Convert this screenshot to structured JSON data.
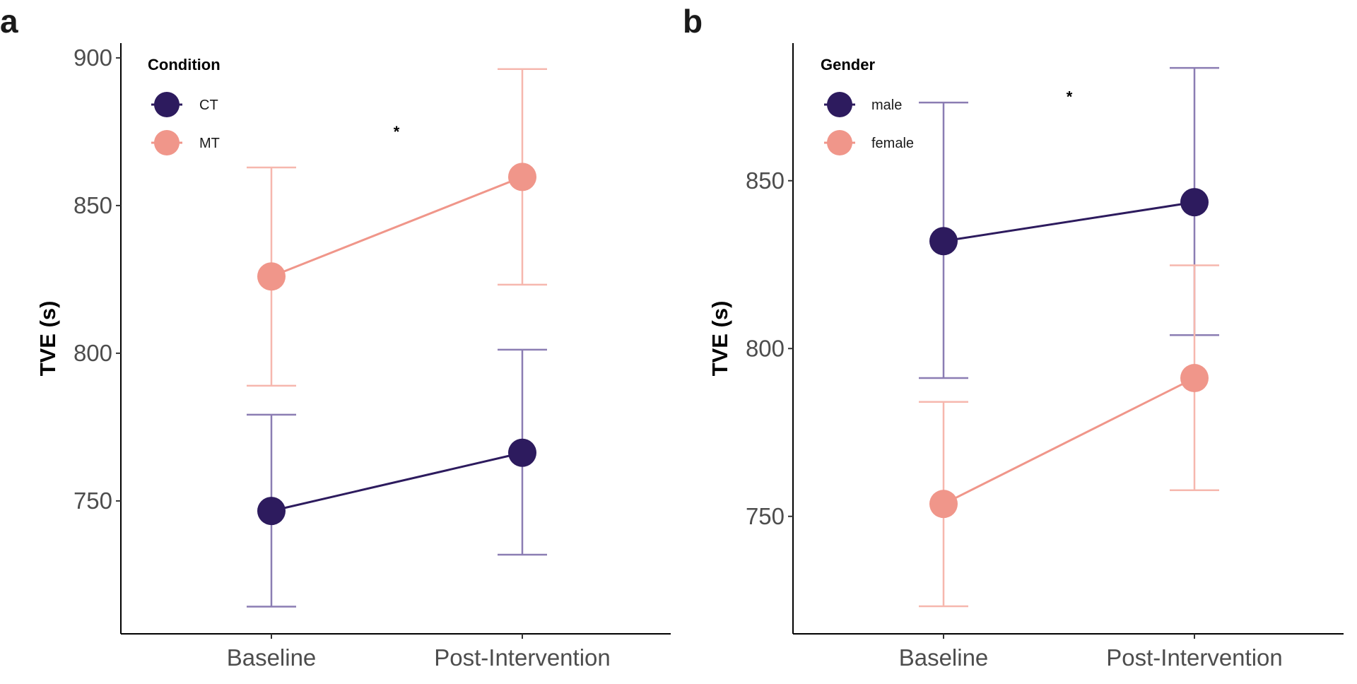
{
  "colors": {
    "dark": "#2d1b5e",
    "light": "#f0968a",
    "dark_err": "#8b7db3",
    "light_err": "#f6b7ae"
  },
  "chart_data": [
    {
      "type": "line",
      "panel_label": "a",
      "ylabel": "TVE (s)",
      "xlabel": "",
      "categories": [
        "Baseline",
        "Post-Intervention"
      ],
      "ylim": [
        705,
        905
      ],
      "yticks": [
        750,
        800,
        850,
        900
      ],
      "grid": false,
      "legend": {
        "title": "Condition",
        "position": "top-left"
      },
      "annotation": {
        "text": "*",
        "x_between": [
          0,
          1
        ],
        "y": 876
      },
      "series": [
        {
          "name": "CT",
          "color_key": "dark",
          "values": [
            746.6,
            766.3
          ],
          "error_low": [
            714.2,
            731.8
          ],
          "error_high": [
            779.2,
            801.2
          ]
        },
        {
          "name": "MT",
          "color_key": "light",
          "values": [
            826.0,
            859.7
          ],
          "error_low": [
            789.0,
            823.2
          ],
          "error_high": [
            862.9,
            896.2
          ]
        }
      ]
    },
    {
      "type": "line",
      "panel_label": "b",
      "ylabel": "TVE (s)",
      "xlabel": "",
      "categories": [
        "Baseline",
        "Post-Intervention"
      ],
      "ylim": [
        715,
        891
      ],
      "yticks": [
        750,
        800,
        850
      ],
      "grid": false,
      "legend": {
        "title": "Gender",
        "position": "top-left"
      },
      "annotation": {
        "text": "*",
        "x_between": [
          0,
          1
        ],
        "y": 876
      },
      "series": [
        {
          "name": "male",
          "color_key": "dark",
          "values": [
            832.0,
            843.6
          ],
          "error_low": [
            791.2,
            804.0
          ],
          "error_high": [
            873.3,
            883.6
          ]
        },
        {
          "name": "female",
          "color_key": "light",
          "values": [
            753.7,
            791.2
          ],
          "error_low": [
            723.2,
            757.8
          ],
          "error_high": [
            784.1,
            824.8
          ]
        }
      ]
    }
  ]
}
